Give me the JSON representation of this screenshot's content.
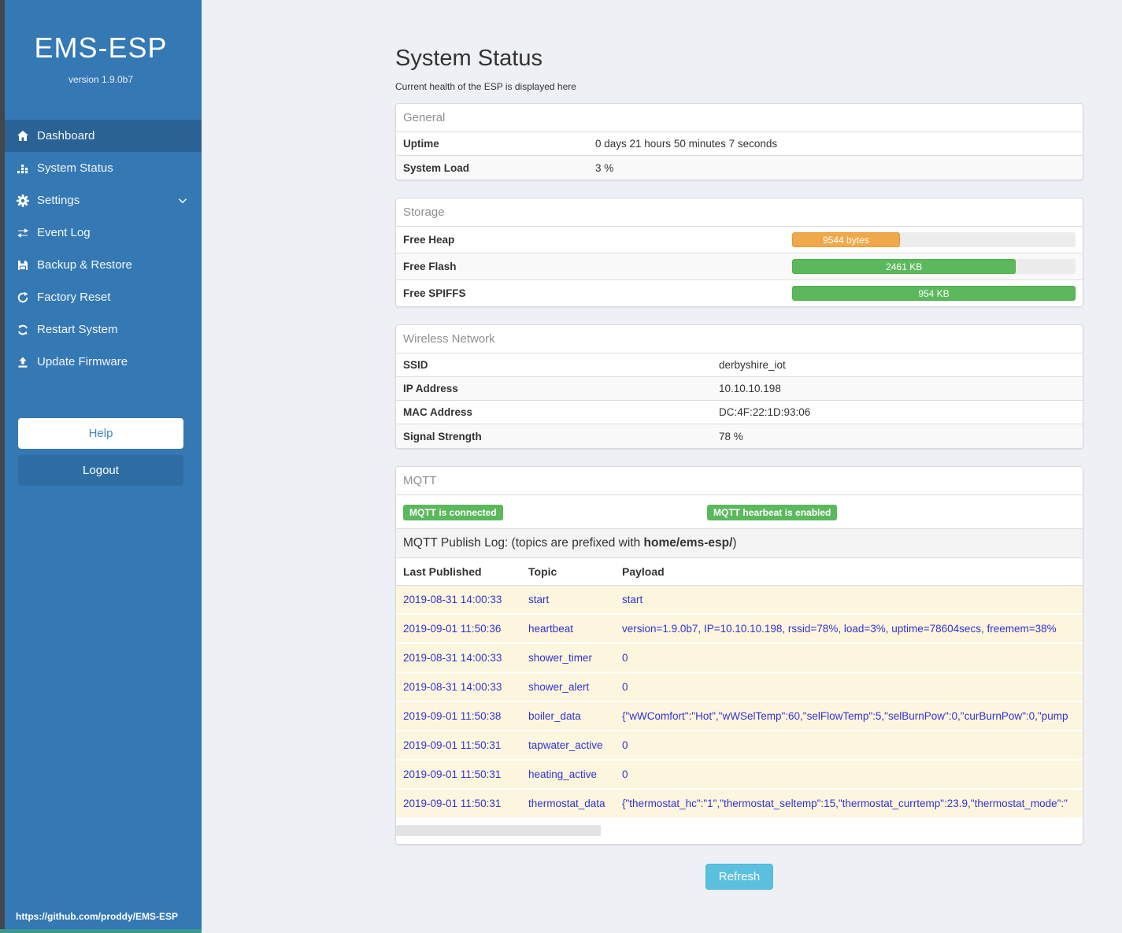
{
  "sidebar": {
    "title": "EMS-ESP",
    "version": "version 1.9.0b7",
    "items": [
      {
        "label": "Dashboard",
        "icon": "home-icon",
        "active": true
      },
      {
        "label": "System Status",
        "icon": "chart-icon",
        "active": false
      },
      {
        "label": "Settings",
        "icon": "gear-icon",
        "active": false,
        "chevron": true
      },
      {
        "label": "Event Log",
        "icon": "arrows-icon",
        "active": false
      },
      {
        "label": "Backup & Restore",
        "icon": "floppy-icon",
        "active": false
      },
      {
        "label": "Factory Reset",
        "icon": "reset-icon",
        "active": false
      },
      {
        "label": "Restart System",
        "icon": "restart-icon",
        "active": false
      },
      {
        "label": "Update Firmware",
        "icon": "upload-icon",
        "active": false
      }
    ],
    "help_label": "Help",
    "logout_label": "Logout",
    "footer_link": "https://github.com/proddy/EMS-ESP"
  },
  "header": {
    "title": "System Status",
    "subtitle": "Current health of the ESP is displayed here"
  },
  "panels": {
    "general": {
      "title": "General",
      "rows": [
        {
          "label": "Uptime",
          "value": "0 days 21 hours 50 minutes 7 seconds"
        },
        {
          "label": "System Load",
          "value": "3 %"
        }
      ]
    },
    "storage": {
      "title": "Storage",
      "rows": [
        {
          "label": "Free Heap",
          "bar_label": "9544 bytes",
          "percent": 38,
          "fill": "#f0a94a",
          "border": "#e49b36"
        },
        {
          "label": "Free Flash",
          "bar_label": "2461 KB",
          "percent": 79,
          "fill": "#5cb85c",
          "border": "#4cae4c"
        },
        {
          "label": "Free SPIFFS",
          "bar_label": "954 KB",
          "percent": 100,
          "fill": "#5cb85c",
          "border": "#4cae4c"
        }
      ]
    },
    "wireless": {
      "title": "Wireless Network",
      "rows": [
        {
          "label": "SSID",
          "value": "derbyshire_iot"
        },
        {
          "label": "IP Address",
          "value": "10.10.10.198"
        },
        {
          "label": "MAC Address",
          "value": "DC:4F:22:1D:93:06"
        },
        {
          "label": "Signal Strength",
          "value": "78 %"
        }
      ]
    },
    "mqtt": {
      "title": "MQTT",
      "badges": [
        {
          "label": "MQTT is connected"
        },
        {
          "label": "MQTT hearbeat is enabled"
        }
      ],
      "log_label_prefix": "MQTT Publish Log: (topics are prefixed with ",
      "log_topic_prefix": "home/ems-esp/",
      "log_label_suffix": ")",
      "table": {
        "headers": [
          "Last Published",
          "Topic",
          "Payload"
        ],
        "rows": [
          [
            "2019-08-31 14:00:33",
            "start",
            "start"
          ],
          [
            "2019-09-01 11:50:36",
            "heartbeat",
            "version=1.9.0b7, IP=10.10.10.198, rssid=78%, load=3%, uptime=78604secs, freemem=38%"
          ],
          [
            "2019-08-31 14:00:33",
            "shower_timer",
            "0"
          ],
          [
            "2019-08-31 14:00:33",
            "shower_alert",
            "0"
          ],
          [
            "2019-09-01 11:50:38",
            "boiler_data",
            "{\"wWComfort\":\"Hot\",\"wWSelTemp\":60,\"selFlowTemp\":5,\"selBurnPow\":0,\"curBurnPow\":0,\"pump"
          ],
          [
            "2019-09-01 11:50:31",
            "tapwater_active",
            "0"
          ],
          [
            "2019-09-01 11:50:31",
            "heating_active",
            "0"
          ],
          [
            "2019-09-01 11:50:31",
            "thermostat_data",
            "{\"thermostat_hc\":\"1\",\"thermostat_seltemp\":15,\"thermostat_currtemp\":23.9,\"thermostat_mode\":\""
          ]
        ]
      }
    }
  },
  "refresh_label": "Refresh",
  "colors": {
    "sidebar_blue": "#3478b4",
    "active_item_blue": "#2a6295",
    "badge_green": "#5cb85c",
    "warning_orange": "#f0a94a",
    "refresh_info_blue": "#5bc0de",
    "log_text_blue": "#3232d6",
    "row_cream": "#fcf6de"
  }
}
